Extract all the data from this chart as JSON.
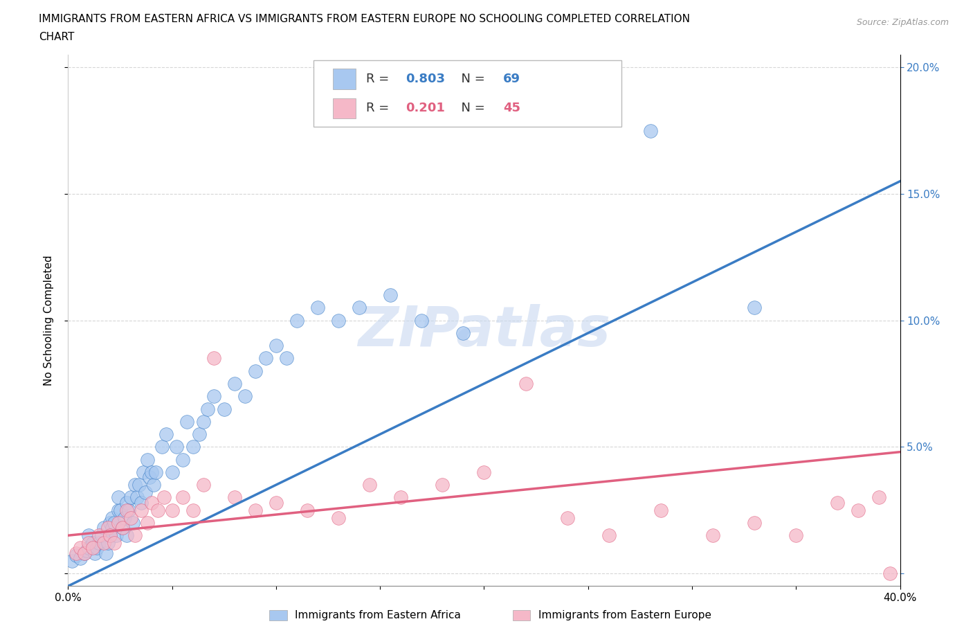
{
  "title_line1": "IMMIGRANTS FROM EASTERN AFRICA VS IMMIGRANTS FROM EASTERN EUROPE NO SCHOOLING COMPLETED CORRELATION",
  "title_line2": "CHART",
  "source": "Source: ZipAtlas.com",
  "ylabel": "No Schooling Completed",
  "xlim": [
    0.0,
    0.4
  ],
  "ylim": [
    -0.005,
    0.205
  ],
  "legend_africa_R": "0.803",
  "legend_africa_N": "69",
  "legend_europe_R": "0.201",
  "legend_europe_N": "45",
  "blue_color": "#a8c8f0",
  "pink_color": "#f5b8c8",
  "blue_line_color": "#3a7cc4",
  "pink_line_color": "#e06080",
  "watermark": "ZIPatlas",
  "watermark_color": "#c8d8f0",
  "africa_x": [
    0.002,
    0.004,
    0.006,
    0.008,
    0.009,
    0.01,
    0.01,
    0.012,
    0.013,
    0.014,
    0.015,
    0.016,
    0.017,
    0.018,
    0.019,
    0.02,
    0.02,
    0.021,
    0.021,
    0.022,
    0.023,
    0.024,
    0.024,
    0.025,
    0.026,
    0.027,
    0.028,
    0.028,
    0.029,
    0.03,
    0.031,
    0.032,
    0.033,
    0.034,
    0.035,
    0.036,
    0.037,
    0.038,
    0.039,
    0.04,
    0.041,
    0.042,
    0.045,
    0.047,
    0.05,
    0.052,
    0.055,
    0.057,
    0.06,
    0.063,
    0.065,
    0.067,
    0.07,
    0.075,
    0.08,
    0.085,
    0.09,
    0.095,
    0.1,
    0.105,
    0.11,
    0.12,
    0.13,
    0.14,
    0.155,
    0.17,
    0.19,
    0.28,
    0.33
  ],
  "africa_y": [
    0.005,
    0.007,
    0.006,
    0.008,
    0.009,
    0.01,
    0.015,
    0.012,
    0.008,
    0.01,
    0.012,
    0.015,
    0.018,
    0.008,
    0.012,
    0.015,
    0.02,
    0.018,
    0.022,
    0.02,
    0.015,
    0.025,
    0.03,
    0.025,
    0.018,
    0.022,
    0.015,
    0.028,
    0.025,
    0.03,
    0.02,
    0.035,
    0.03,
    0.035,
    0.028,
    0.04,
    0.032,
    0.045,
    0.038,
    0.04,
    0.035,
    0.04,
    0.05,
    0.055,
    0.04,
    0.05,
    0.045,
    0.06,
    0.05,
    0.055,
    0.06,
    0.065,
    0.07,
    0.065,
    0.075,
    0.07,
    0.08,
    0.085,
    0.09,
    0.085,
    0.1,
    0.105,
    0.1,
    0.105,
    0.11,
    0.1,
    0.095,
    0.175,
    0.105
  ],
  "europe_x": [
    0.004,
    0.006,
    0.008,
    0.01,
    0.012,
    0.015,
    0.017,
    0.019,
    0.02,
    0.022,
    0.024,
    0.026,
    0.028,
    0.03,
    0.032,
    0.035,
    0.038,
    0.04,
    0.043,
    0.046,
    0.05,
    0.055,
    0.06,
    0.065,
    0.07,
    0.08,
    0.09,
    0.1,
    0.115,
    0.13,
    0.145,
    0.16,
    0.18,
    0.2,
    0.22,
    0.24,
    0.26,
    0.285,
    0.31,
    0.33,
    0.35,
    0.37,
    0.38,
    0.39,
    0.395
  ],
  "europe_y": [
    0.008,
    0.01,
    0.008,
    0.012,
    0.01,
    0.015,
    0.012,
    0.018,
    0.015,
    0.012,
    0.02,
    0.018,
    0.025,
    0.022,
    0.015,
    0.025,
    0.02,
    0.028,
    0.025,
    0.03,
    0.025,
    0.03,
    0.025,
    0.035,
    0.085,
    0.03,
    0.025,
    0.028,
    0.025,
    0.022,
    0.035,
    0.03,
    0.035,
    0.04,
    0.075,
    0.022,
    0.015,
    0.025,
    0.015,
    0.02,
    0.015,
    0.028,
    0.025,
    0.03,
    0.0
  ],
  "africa_line_x": [
    0.0,
    0.4
  ],
  "africa_line_y": [
    -0.005,
    0.155
  ],
  "europe_line_x": [
    0.0,
    0.4
  ],
  "europe_line_y": [
    0.015,
    0.048
  ]
}
